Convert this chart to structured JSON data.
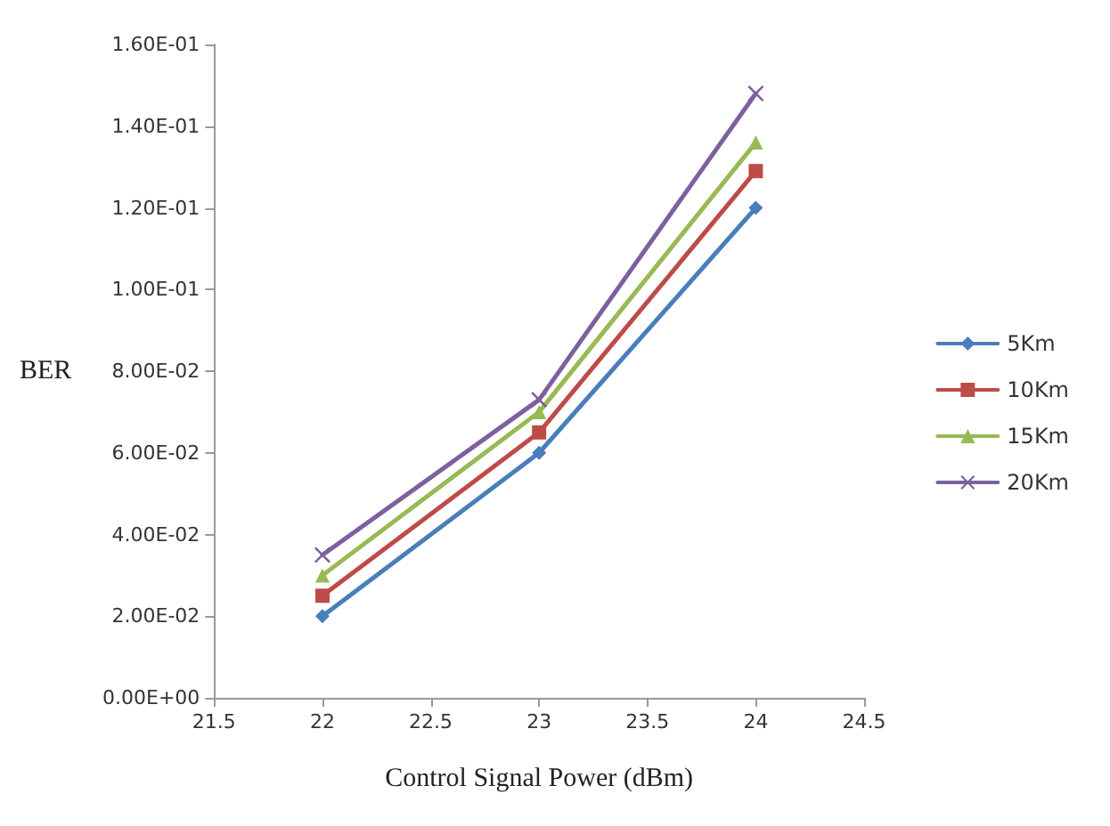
{
  "chart_data": {
    "type": "line",
    "xlabel": "Control Signal Power (dBm)",
    "ylabel": "BER",
    "x": [
      22,
      23,
      24
    ],
    "series": [
      {
        "name": "5Km",
        "color": "#4a7ebb",
        "marker": "diamond",
        "values": [
          0.02,
          0.06,
          0.12
        ]
      },
      {
        "name": "10Km",
        "color": "#be4b48",
        "marker": "square",
        "values": [
          0.025,
          0.065,
          0.129
        ]
      },
      {
        "name": "15Km",
        "color": "#98b954",
        "marker": "triangle",
        "values": [
          0.03,
          0.07,
          0.136
        ]
      },
      {
        "name": "20Km",
        "color": "#7d60a0",
        "marker": "cross",
        "values": [
          0.035,
          0.073,
          0.148
        ]
      }
    ],
    "xlim": [
      21.5,
      24.5
    ],
    "xticks": [
      21.5,
      22,
      22.5,
      23,
      23.5,
      24,
      24.5
    ],
    "ylim": [
      0,
      0.16
    ],
    "yticks": [
      {
        "value": 0,
        "label": "0.00E+00"
      },
      {
        "value": 0.02,
        "label": "2.00E-02"
      },
      {
        "value": 0.04,
        "label": "4.00E-02"
      },
      {
        "value": 0.06,
        "label": "6.00E-02"
      },
      {
        "value": 0.08,
        "label": "8.00E-02"
      },
      {
        "value": 0.1,
        "label": "1.00E-01"
      },
      {
        "value": 0.12,
        "label": "1.20E-01"
      },
      {
        "value": 0.14,
        "label": "1.40E-01"
      },
      {
        "value": 0.16,
        "label": "1.60E-01"
      }
    ],
    "grid": false,
    "legend": "right",
    "line_style": "solid"
  }
}
